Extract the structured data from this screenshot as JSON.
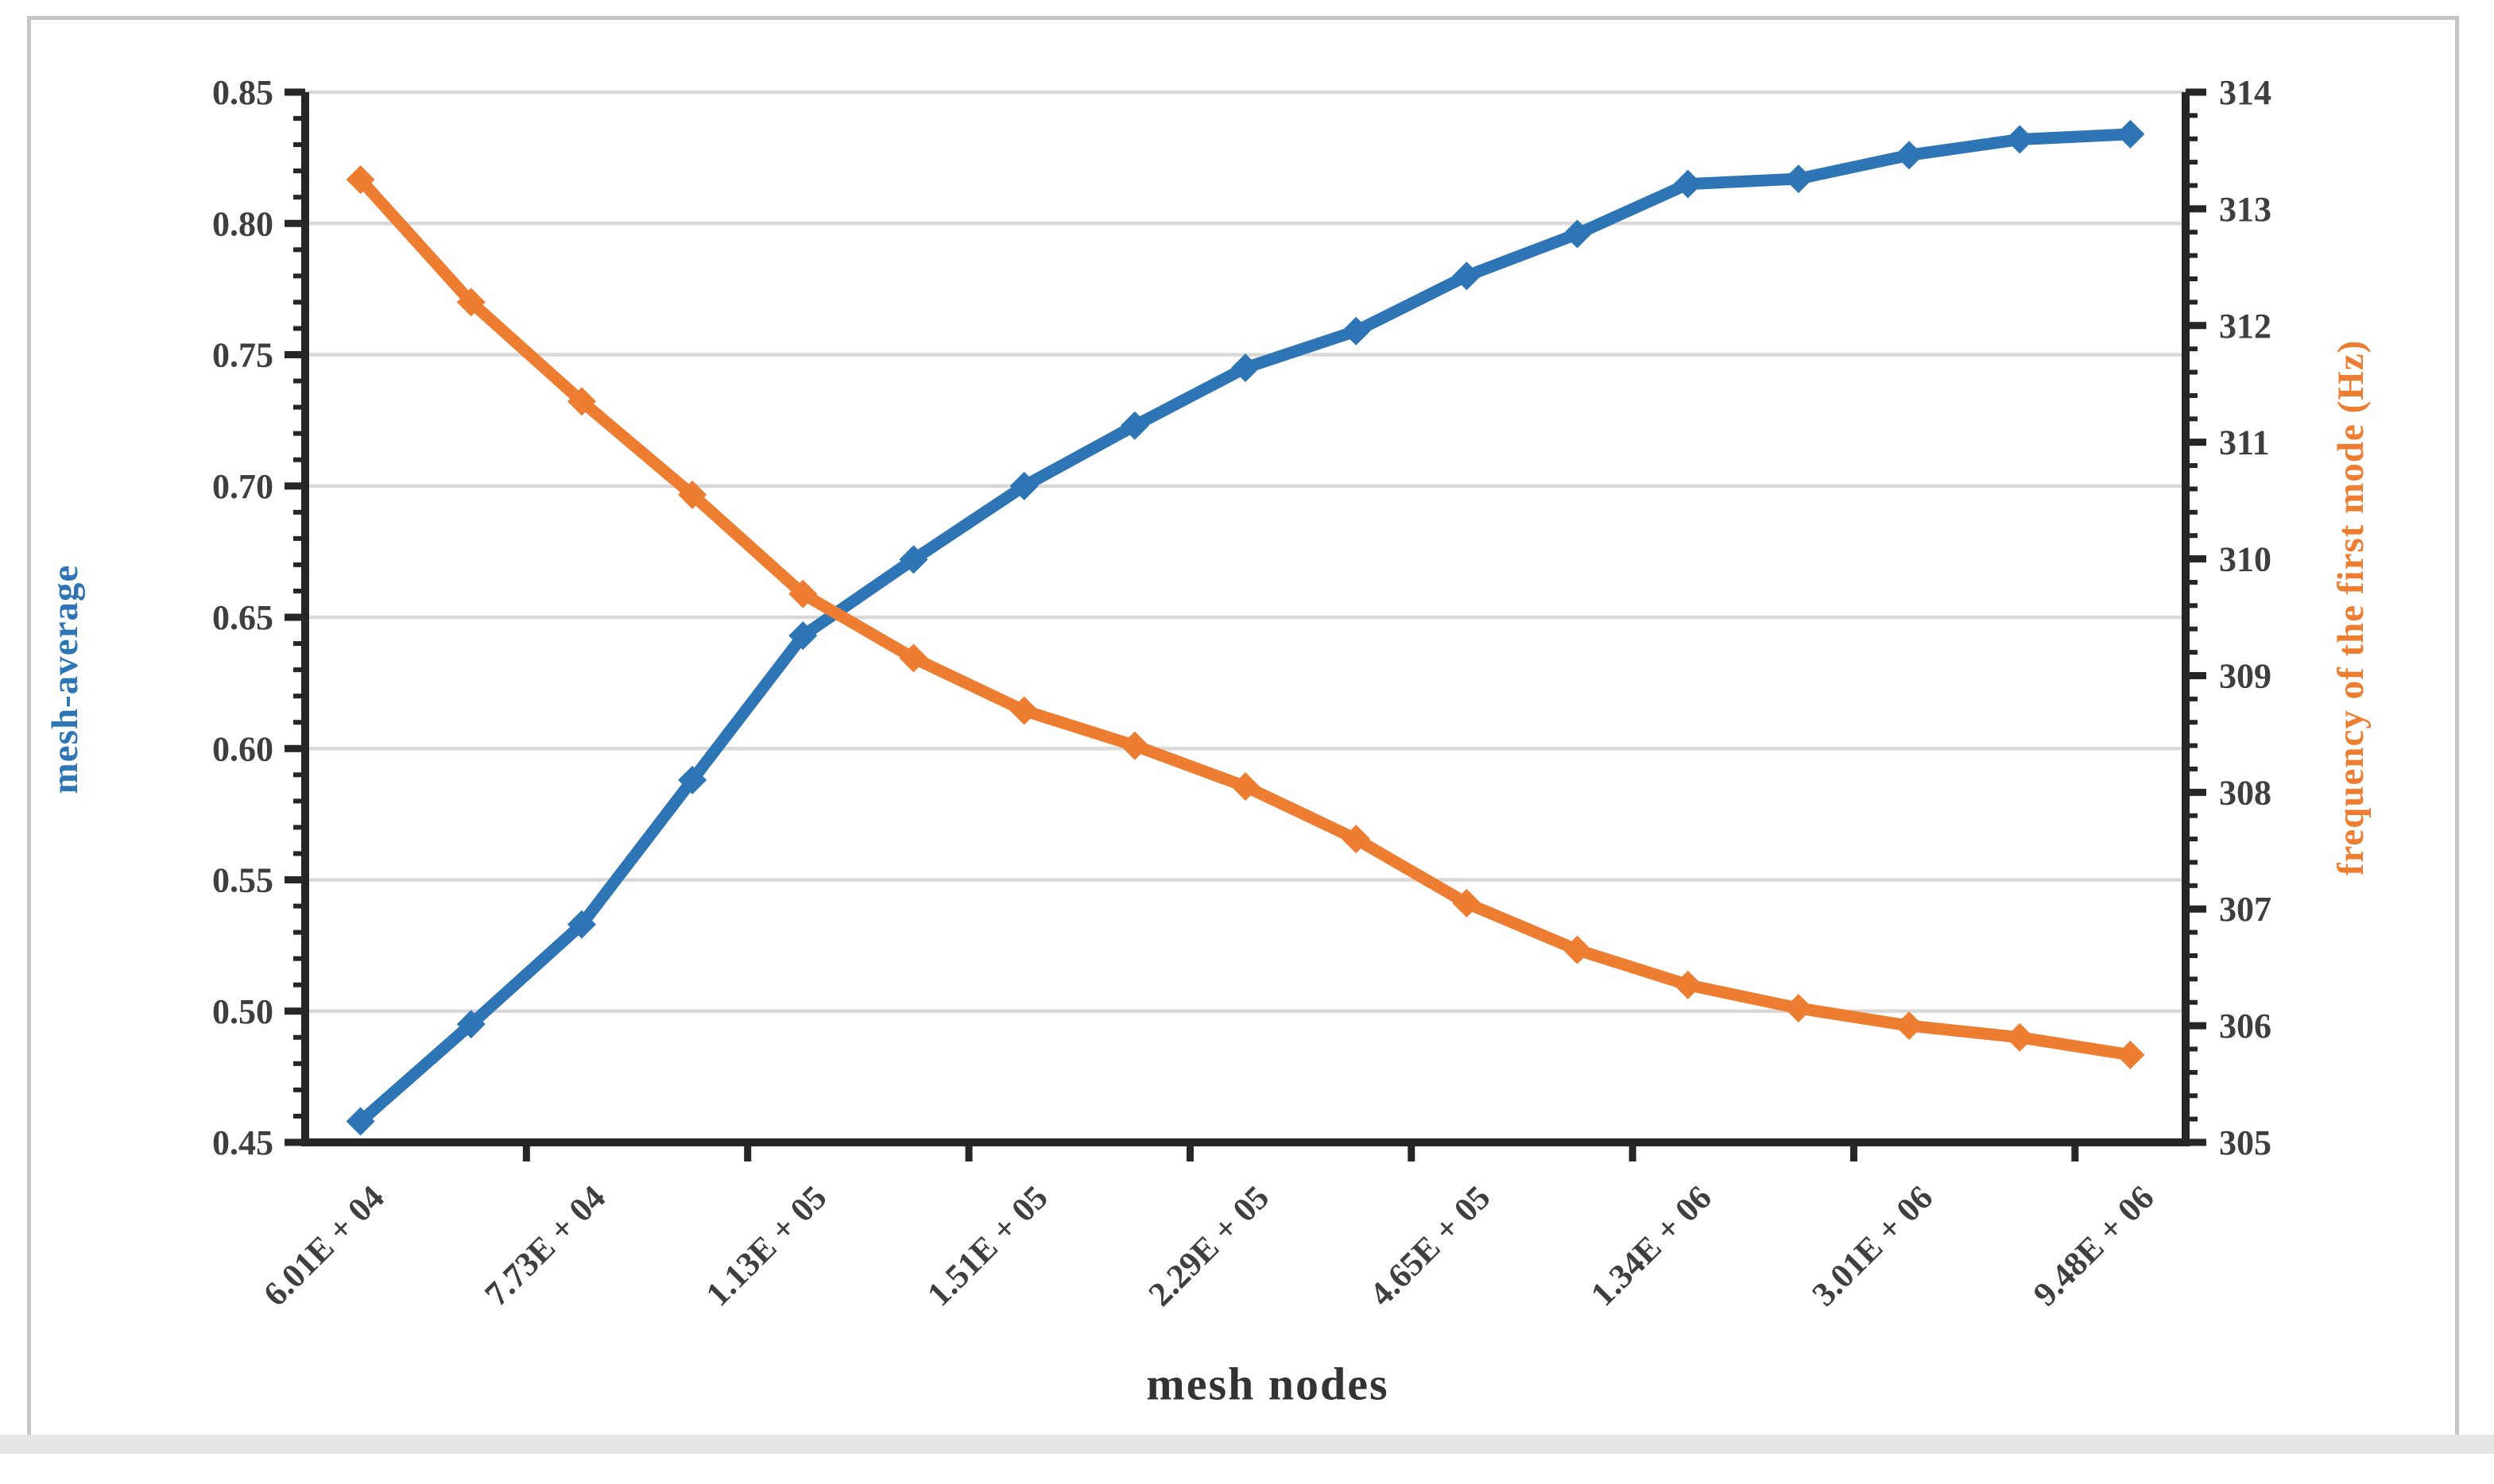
{
  "chart_data": {
    "type": "line",
    "title": "",
    "x_axis": {
      "label": "mesh nodes",
      "n_categories": 17,
      "label_every": 2,
      "tick_labels": [
        "6.01E + 04",
        "7.73E + 04",
        "1.13E + 05",
        "1.51E + 05",
        "2.29E + 05",
        "4.65E + 05",
        "1.34E + 06",
        "3.01E + 06",
        "9.48E + 06"
      ]
    },
    "y_left": {
      "label": "mesh-average",
      "min": 0.45,
      "max": 0.85,
      "major_step": 0.05,
      "minor_step": 0.01,
      "tick_labels": [
        "0.45",
        "0.50",
        "0.55",
        "0.60",
        "0.65",
        "0.70",
        "0.75",
        "0.80",
        "0.85"
      ],
      "color": "#2E75B6"
    },
    "y_right": {
      "label": "frequency of the first mode (Hz)",
      "min": 305,
      "max": 314,
      "major_step": 1,
      "minor_step": 0.2,
      "tick_labels": [
        "305",
        "306",
        "307",
        "308",
        "309",
        "310",
        "311",
        "312",
        "313",
        "314"
      ],
      "color": "#ED7D31"
    },
    "series": [
      {
        "name": "mesh-average",
        "axis": "left",
        "color": "#2E75B6",
        "values": [
          0.458,
          0.495,
          0.533,
          0.588,
          0.643,
          0.672,
          0.7,
          0.723,
          0.745,
          0.759,
          0.78,
          0.796,
          0.815,
          0.817,
          0.826,
          0.832,
          0.834
        ]
      },
      {
        "name": "frequency of the first mode (Hz)",
        "axis": "right",
        "color": "#ED7D31",
        "values": [
          313.25,
          312.2,
          311.35,
          310.55,
          309.7,
          309.15,
          308.7,
          308.4,
          308.05,
          307.6,
          307.05,
          306.65,
          306.35,
          306.15,
          306.0,
          305.9,
          305.75
        ]
      }
    ],
    "grid": {
      "show": true,
      "color": "#D9D9D9"
    },
    "legend": {
      "show": false
    },
    "styles": {
      "axis_color": "#262626",
      "tick_label_color": "#3F3F3F"
    }
  }
}
